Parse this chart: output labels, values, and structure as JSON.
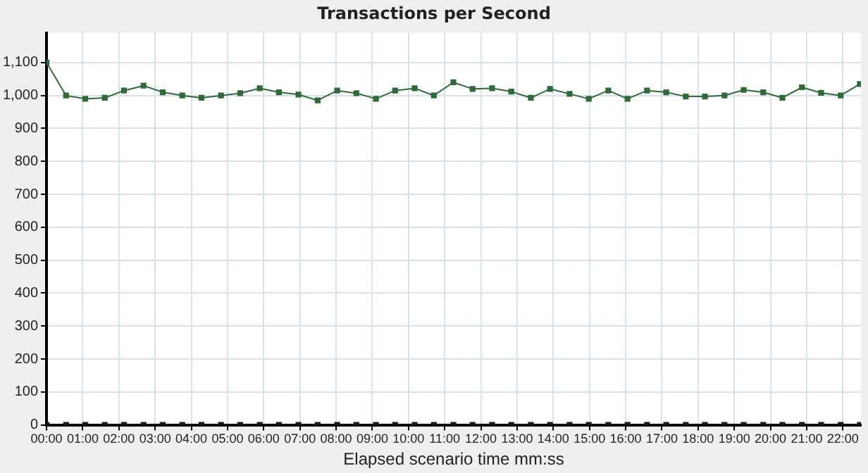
{
  "chart_data": {
    "type": "line",
    "title": "Transactions per Second",
    "xlabel": "Elapsed scenario time mm:ss",
    "x": [
      0,
      0.54,
      1.07,
      1.61,
      2.14,
      2.68,
      3.21,
      3.75,
      4.28,
      4.82,
      5.35,
      5.89,
      6.42,
      6.96,
      7.49,
      8.03,
      8.56,
      9.1,
      9.63,
      10.17,
      10.7,
      11.24,
      11.77,
      12.31,
      12.84,
      13.38,
      13.91,
      14.45,
      14.98,
      15.52,
      16.05,
      16.59,
      17.12,
      17.66,
      18.19,
      18.73,
      19.26,
      19.8,
      20.33,
      20.87,
      21.4,
      21.94,
      22.47
    ],
    "series": [
      {
        "color": "#2f6b3a",
        "values": [
          1100,
          1000,
          990,
          993,
          1015,
          1030,
          1010,
          1000,
          993,
          1000,
          1007,
          1022,
          1010,
          1003,
          985,
          1015,
          1007,
          990,
          1015,
          1022,
          1000,
          1040,
          1020,
          1022,
          1012,
          993,
          1020,
          1005,
          990,
          1015,
          990,
          1015,
          1010,
          997,
          997,
          1000,
          1017,
          1010,
          993,
          1025,
          1008,
          1000,
          1035
        ]
      },
      {
        "color": "#1a1a1a",
        "values": [
          0,
          0,
          0,
          0,
          0,
          0,
          0,
          0,
          0,
          0,
          0,
          0,
          0,
          0,
          0,
          0,
          0,
          0,
          0,
          0,
          0,
          0,
          0,
          0,
          0,
          0,
          0,
          0,
          0,
          0,
          0,
          0,
          0,
          0,
          0,
          0,
          0,
          0,
          0,
          0,
          0,
          0,
          0
        ]
      }
    ],
    "xlim": [
      0,
      22.5
    ],
    "xticks": [
      {
        "value": 0,
        "label": "00:00"
      },
      {
        "value": 1,
        "label": "01:00"
      },
      {
        "value": 2,
        "label": "02:00"
      },
      {
        "value": 3,
        "label": "03:00"
      },
      {
        "value": 4,
        "label": "04:00"
      },
      {
        "value": 5,
        "label": "05:00"
      },
      {
        "value": 6,
        "label": "06:00"
      },
      {
        "value": 7,
        "label": "07:00"
      },
      {
        "value": 8,
        "label": "08:00"
      },
      {
        "value": 9,
        "label": "09:00"
      },
      {
        "value": 10,
        "label": "10:00"
      },
      {
        "value": 11,
        "label": "11:00"
      },
      {
        "value": 12,
        "label": "12:00"
      },
      {
        "value": 13,
        "label": "13:00"
      },
      {
        "value": 14,
        "label": "14:00"
      },
      {
        "value": 15,
        "label": "15:00"
      },
      {
        "value": 16,
        "label": "16:00"
      },
      {
        "value": 17,
        "label": "17:00"
      },
      {
        "value": 18,
        "label": "18:00"
      },
      {
        "value": 19,
        "label": "19:00"
      },
      {
        "value": 20,
        "label": "20:00"
      },
      {
        "value": 21,
        "label": "21:00"
      },
      {
        "value": 22,
        "label": "22:00"
      }
    ],
    "ylim": [
      0,
      1190
    ],
    "yticks": [
      0,
      100,
      200,
      300,
      400,
      500,
      600,
      700,
      800,
      900,
      {
        "value": 1000,
        "label": "1,000"
      },
      {
        "value": 1100,
        "label": "1,100"
      }
    ],
    "grid": true,
    "legend": false,
    "marker": "square",
    "line_style": "solid"
  }
}
